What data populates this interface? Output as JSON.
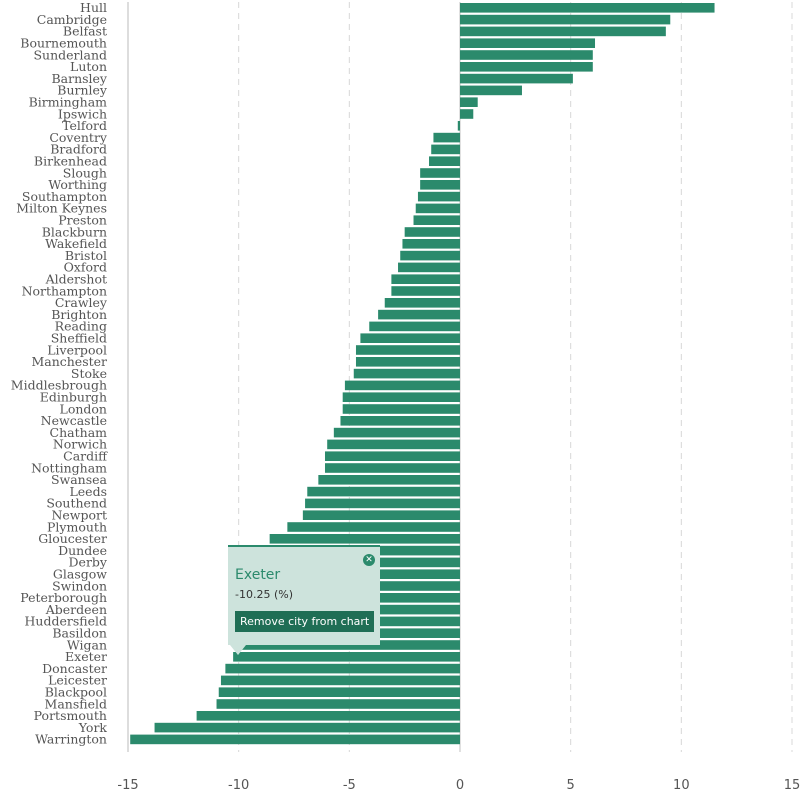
{
  "chart_data": {
    "type": "bar",
    "orientation": "horizontal",
    "categories": [
      "Hull",
      "Cambridge",
      "Belfast",
      "Bournemouth",
      "Sunderland",
      "Luton",
      "Barnsley",
      "Burnley",
      "Birmingham",
      "Ipswich",
      "Telford",
      "Coventry",
      "Bradford",
      "Birkenhead",
      "Slough",
      "Worthing",
      "Southampton",
      "Milton Keynes",
      "Preston",
      "Blackburn",
      "Wakefield",
      "Bristol",
      "Oxford",
      "Aldershot",
      "Northampton",
      "Crawley",
      "Brighton",
      "Reading",
      "Sheffield",
      "Liverpool",
      "Manchester",
      "Stoke",
      "Middlesbrough",
      "Edinburgh",
      "London",
      "Newcastle",
      "Chatham",
      "Norwich",
      "Cardiff",
      "Nottingham",
      "Swansea",
      "Leeds",
      "Southend",
      "Newport",
      "Plymouth",
      "Gloucester",
      "Dundee",
      "Derby",
      "Glasgow",
      "Swindon",
      "Peterborough",
      "Aberdeen",
      "Huddersfield",
      "Basildon",
      "Wigan",
      "Exeter",
      "Doncaster",
      "Leicester",
      "Blackpool",
      "Mansfield",
      "Portsmouth",
      "York",
      "Warrington"
    ],
    "values": [
      11.5,
      9.5,
      9.3,
      6.1,
      6.0,
      6.0,
      5.1,
      2.8,
      0.8,
      0.6,
      -0.1,
      -1.2,
      -1.3,
      -1.4,
      -1.8,
      -1.8,
      -1.9,
      -2.0,
      -2.1,
      -2.5,
      -2.6,
      -2.7,
      -2.8,
      -3.1,
      -3.1,
      -3.4,
      -3.7,
      -4.1,
      -4.5,
      -4.7,
      -4.7,
      -4.8,
      -5.2,
      -5.3,
      -5.3,
      -5.4,
      -5.7,
      -6.0,
      -6.1,
      -6.1,
      -6.4,
      -6.9,
      -7.0,
      -7.1,
      -7.8,
      -8.6,
      -8.9,
      -9.1,
      -9.2,
      -9.3,
      -9.5,
      -9.6,
      -9.7,
      -9.9,
      -10.1,
      -10.25,
      -10.6,
      -10.8,
      -10.9,
      -11.0,
      -11.9,
      -13.8,
      -14.9
    ],
    "xlim": [
      -15,
      15
    ],
    "xticks": [
      -15,
      -10,
      -5,
      0,
      5,
      10,
      15
    ],
    "grid": true,
    "title": "",
    "xlabel": "",
    "ylabel": "",
    "bar_color": "#2b8a6c",
    "highlighted": "Exeter"
  },
  "tooltip": {
    "city": "Exeter",
    "value_text": "-10.25 (%)",
    "remove_label": "Remove city from chart",
    "close_icon": "close-icon"
  },
  "colors": {
    "bar": "#2b8a6c",
    "tooltip_bg": "#cde3dc",
    "button_bg": "#1f6e55"
  }
}
